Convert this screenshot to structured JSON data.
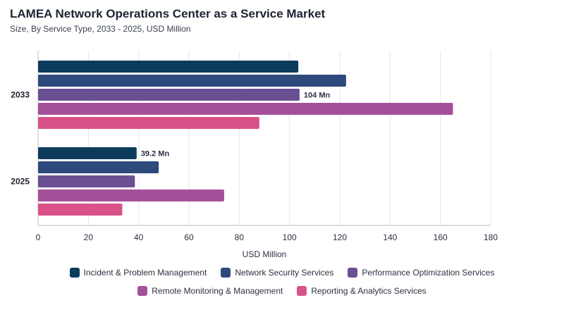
{
  "chart_data": {
    "type": "bar",
    "orientation": "horizontal",
    "title": "LAMEA Network Operations Center as a Service Market",
    "subtitle": "Size, By Service Type, 2033 - 2025, USD Million",
    "xlabel": "USD Million",
    "ylabel": "",
    "xlim": [
      0,
      180
    ],
    "xticks": [
      0,
      20,
      40,
      60,
      80,
      100,
      120,
      140,
      160,
      180
    ],
    "grid": true,
    "legend_position": "bottom",
    "categories": [
      "2033",
      "2025"
    ],
    "series": [
      {
        "name": "Incident & Problem Management",
        "color": "#0d3b5c",
        "values": [
          103.5,
          39.2
        ]
      },
      {
        "name": "Network Security Services",
        "color": "#2e4a7d",
        "values": [
          122.5,
          48
        ]
      },
      {
        "name": "Performance Optimization Services",
        "color": "#6a4f93",
        "values": [
          104,
          38.5
        ]
      },
      {
        "name": "Remote Monitoring & Management",
        "color": "#a4509a",
        "values": [
          165,
          74
        ]
      },
      {
        "name": "Reporting & Analytics Services",
        "color": "#d95189",
        "values": [
          88,
          33.5
        ]
      }
    ],
    "data_labels": [
      {
        "category": "2033",
        "series": "Performance Optimization Services",
        "text": "104 Mn"
      },
      {
        "category": "2025",
        "series": "Incident & Problem Management",
        "text": "39.2 Mn"
      }
    ]
  }
}
